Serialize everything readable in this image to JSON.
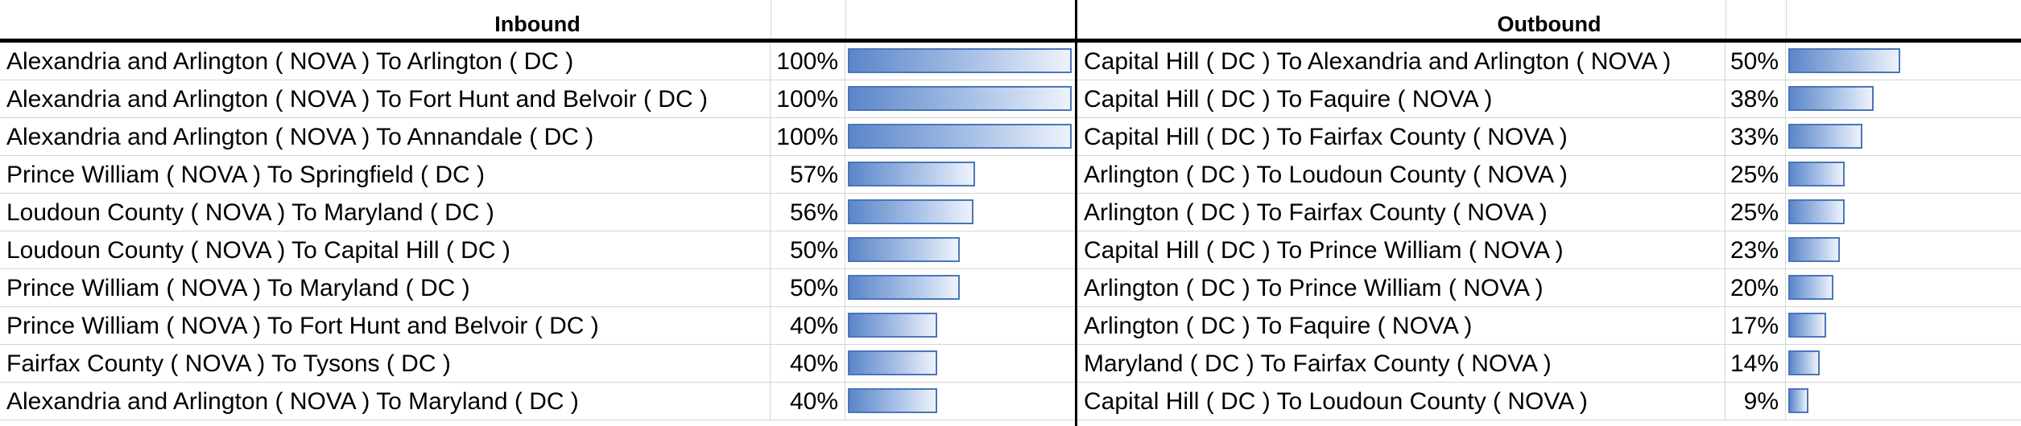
{
  "chart_data": [
    {
      "type": "bar",
      "title": "Inbound",
      "categories": [
        "Alexandria and Arlington ( NOVA ) To Arlington (  DC )",
        "Alexandria and Arlington ( NOVA ) To Fort Hunt and Belvoir (  DC )",
        "Alexandria and Arlington ( NOVA ) To Annandale (  DC )",
        "Prince William ( NOVA ) To Springfield (  DC )",
        "Loudoun County ( NOVA ) To Maryland (  DC )",
        "Loudoun County ( NOVA ) To Capital Hill (  DC )",
        "Prince William ( NOVA ) To Maryland (  DC )",
        "Prince William ( NOVA ) To Fort Hunt and Belvoir (  DC )",
        "Fairfax County ( NOVA ) To Tysons (  DC )",
        "Alexandria and Arlington ( NOVA ) To Maryland (  DC )"
      ],
      "values": [
        100,
        100,
        100,
        57,
        56,
        50,
        50,
        40,
        40,
        40
      ],
      "labels": [
        "100%",
        "100%",
        "100%",
        "57%",
        "56%",
        "50%",
        "50%",
        "40%",
        "40%",
        "40%"
      ],
      "xlim": [
        0,
        100
      ]
    },
    {
      "type": "bar",
      "title": "Outbound",
      "categories": [
        "Capital Hill ( DC ) To Alexandria and Arlington (  NOVA )",
        "Capital Hill ( DC ) To Faquire (  NOVA )",
        "Capital Hill ( DC ) To Fairfax County (  NOVA )",
        "Arlington ( DC ) To Loudoun County (  NOVA )",
        "Arlington ( DC ) To Fairfax County (  NOVA )",
        "Capital Hill ( DC ) To Prince William (  NOVA )",
        "Arlington ( DC ) To Prince William (  NOVA )",
        "Arlington ( DC ) To Faquire (  NOVA )",
        "Maryland ( DC ) To Fairfax County (  NOVA )",
        "Capital Hill ( DC ) To Loudoun County (  NOVA )"
      ],
      "values": [
        50,
        38,
        33,
        25,
        25,
        23,
        20,
        17,
        14,
        9
      ],
      "labels": [
        "50%",
        "38%",
        "33%",
        "25%",
        "25%",
        "23%",
        "20%",
        "17%",
        "14%",
        "9%"
      ],
      "xlim": [
        0,
        100
      ]
    }
  ],
  "colors": {
    "bar_fill_start": "#5b86c9",
    "bar_border": "#4a75b8"
  }
}
